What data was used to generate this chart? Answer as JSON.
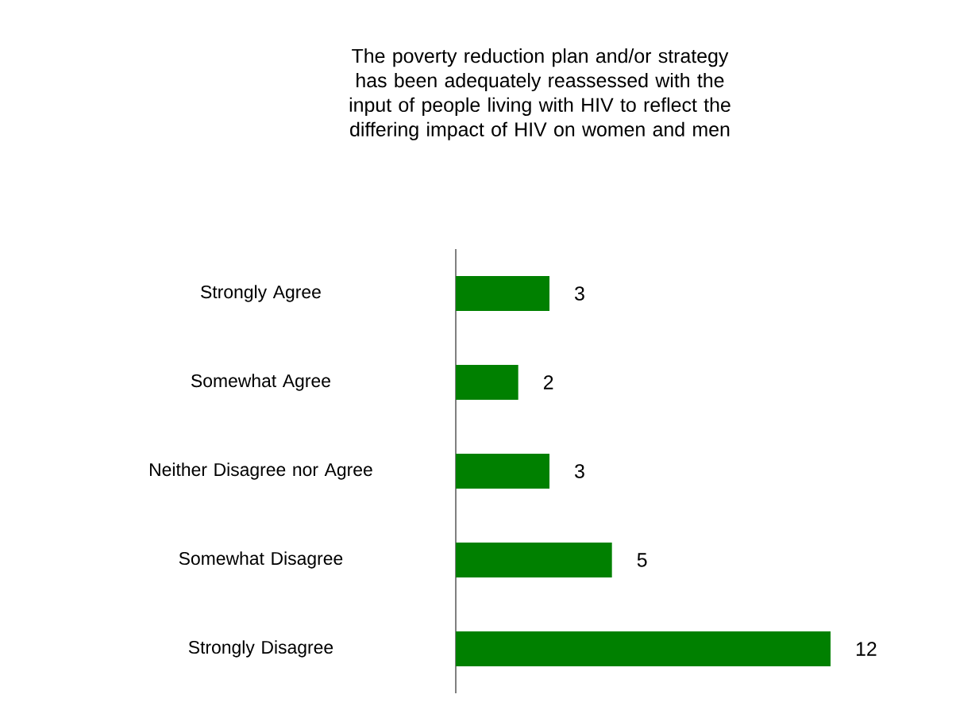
{
  "chart_data": {
    "type": "bar",
    "orientation": "horizontal",
    "title": "The poverty reduction plan and/or strategy has been adequately reassessed with the input of people living with HIV to reflect the differing impact of HIV on women and men",
    "categories": [
      "Strongly Agree",
      "Somewhat Agree",
      "Neither  Disagree nor Agree",
      "Somewhat Disagree",
      "Strongly Disagree"
    ],
    "values": [
      3,
      2,
      3,
      5,
      12
    ],
    "color": "#008000",
    "data_labels": true
  }
}
